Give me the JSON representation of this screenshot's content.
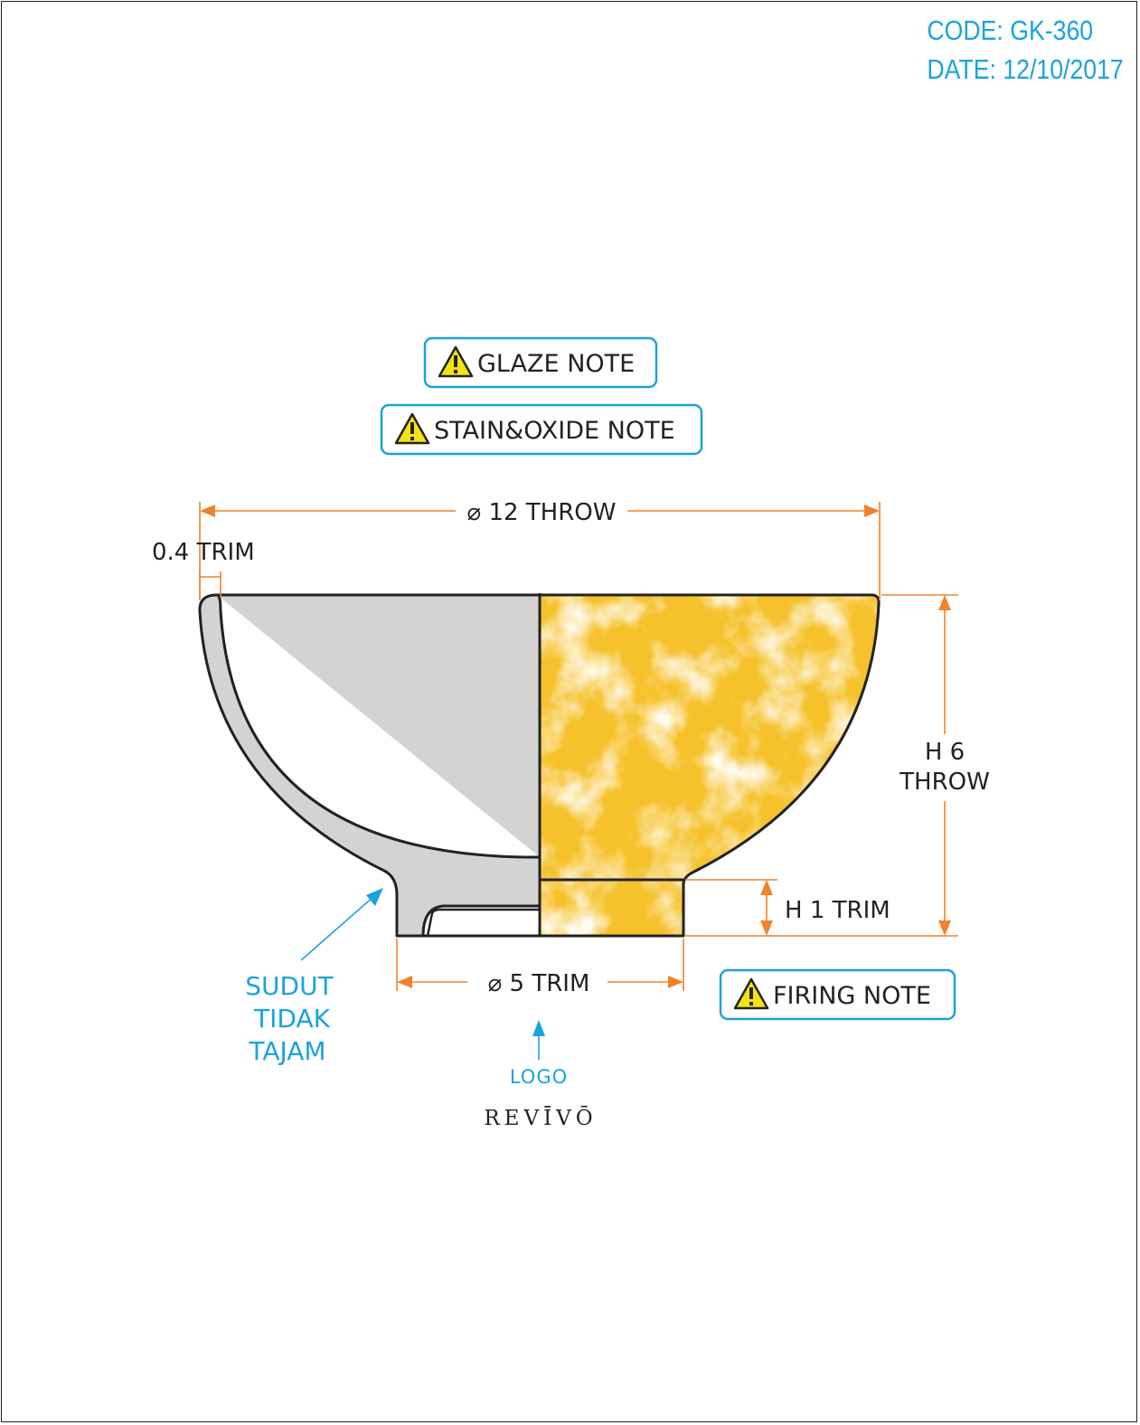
{
  "header": {
    "code": "CODE: GK-360",
    "date": "DATE: 12/10/2017"
  },
  "notes": {
    "glaze": "GLAZE NOTE",
    "stain_oxide": "STAIN&OXIDE NOTE",
    "firing": "FIRING NOTE"
  },
  "dimensions": {
    "diameter_top": "⌀ 12 THROW",
    "rim_trim": "0.4 TRIM",
    "height_line1": "H 6",
    "height_line2": "THROW",
    "foot_height": "H 1 TRIM",
    "diameter_foot": "⌀ 5 TRIM"
  },
  "annotations": {
    "corner_line1": "SUDUT",
    "corner_line2": "TIDAK",
    "corner_line3": "TAJAM",
    "logo_label": "LOGO",
    "logo_brand": "REVĪVŌ"
  },
  "colors": {
    "dimension": "#f0822a",
    "annotation": "#1aa3dc",
    "section_fill": "#d3d3d3",
    "glaze_fill": "#f6c22c",
    "outline": "#222222",
    "warning": "#f4e311"
  },
  "icons": {
    "note": "warning-icon",
    "arrow": "arrow-icon"
  }
}
